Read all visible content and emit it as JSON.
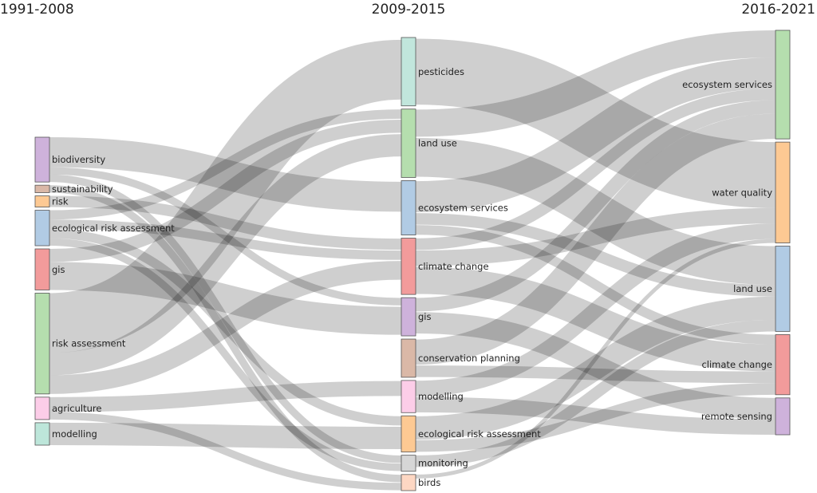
{
  "chart_data": {
    "type": "sankey",
    "columns": [
      {
        "title": "1991-2008",
        "nodes": [
          {
            "id": "c0_biodiversity",
            "label": "biodiversity",
            "color": "#c6a5d5"
          },
          {
            "id": "c0_sustainability",
            "label": "sustainability",
            "color": "#d3ab98"
          },
          {
            "id": "c0_risk",
            "label": "risk",
            "color": "#fdc080"
          },
          {
            "id": "c0_era",
            "label": "ecological risk assessment",
            "color": "#a3c2df"
          },
          {
            "id": "c0_gis",
            "label": "gis",
            "color": "#f08a8a"
          },
          {
            "id": "c0_ra",
            "label": "risk assessment",
            "color": "#a8d8a0"
          },
          {
            "id": "c0_agriculture",
            "label": "agriculture",
            "color": "#fcc4e4"
          },
          {
            "id": "c0_modelling",
            "label": "modelling",
            "color": "#b2e2d4"
          }
        ]
      },
      {
        "title": "2009-2015",
        "nodes": [
          {
            "id": "c1_pesticides",
            "label": "pesticides",
            "color": "#b6e2d6"
          },
          {
            "id": "c1_landuse",
            "label": "land use",
            "color": "#a8d8a0"
          },
          {
            "id": "c1_es",
            "label": "ecosystem services",
            "color": "#a3c2df"
          },
          {
            "id": "c1_cc",
            "label": "climate change",
            "color": "#f08a8a"
          },
          {
            "id": "c1_gis",
            "label": "gis",
            "color": "#c6a5d5"
          },
          {
            "id": "c1_cp",
            "label": "conservation planning",
            "color": "#d3ab98"
          },
          {
            "id": "c1_modelling",
            "label": "modelling",
            "color": "#fcc4e4"
          },
          {
            "id": "c1_era",
            "label": "ecological risk assessment",
            "color": "#fdc080"
          },
          {
            "id": "c1_monitoring",
            "label": "monitoring",
            "color": "#cfcfcf"
          },
          {
            "id": "c1_birds",
            "label": "birds",
            "color": "#fdd0b8"
          }
        ]
      },
      {
        "title": "2016-2021",
        "nodes": [
          {
            "id": "c2_es",
            "label": "ecosystem services",
            "color": "#a8d8a0"
          },
          {
            "id": "c2_wq",
            "label": "water quality",
            "color": "#fdc080"
          },
          {
            "id": "c2_landuse",
            "label": "land use",
            "color": "#a3c2df"
          },
          {
            "id": "c2_cc",
            "label": "climate change",
            "color": "#f08a8a"
          },
          {
            "id": "c2_rs",
            "label": "remote sensing",
            "color": "#c6a5d5"
          }
        ]
      }
    ],
    "links": [
      {
        "source": "c0_biodiversity",
        "target": "c1_es",
        "value": 16
      },
      {
        "source": "c0_biodiversity",
        "target": "c1_gis",
        "value": 4
      },
      {
        "source": "c0_biodiversity",
        "target": "c1_monitoring",
        "value": 4
      },
      {
        "source": "c0_sustainability",
        "target": "c1_birds",
        "value": 4
      },
      {
        "source": "c0_risk",
        "target": "c1_cc",
        "value": 6
      },
      {
        "source": "c0_era",
        "target": "c1_landuse",
        "value": 5
      },
      {
        "source": "c0_era",
        "target": "c1_cc",
        "value": 5
      },
      {
        "source": "c0_era",
        "target": "c1_era",
        "value": 5
      },
      {
        "source": "c0_era",
        "target": "c1_monitoring",
        "value": 4
      },
      {
        "source": "c0_gis",
        "target": "c1_landuse",
        "value": 7
      },
      {
        "source": "c0_gis",
        "target": "c1_gis",
        "value": 15
      },
      {
        "source": "c0_ra",
        "target": "c1_pesticides",
        "value": 32
      },
      {
        "source": "c0_ra",
        "target": "c1_landuse",
        "value": 12
      },
      {
        "source": "c0_ra",
        "target": "c1_cc",
        "value": 10
      },
      {
        "source": "c0_agriculture",
        "target": "c1_modelling",
        "value": 8
      },
      {
        "source": "c0_agriculture",
        "target": "c1_birds",
        "value": 4
      },
      {
        "source": "c0_modelling",
        "target": "c1_era",
        "value": 12
      },
      {
        "source": "c1_pesticides",
        "target": "c2_wq",
        "value": 34
      },
      {
        "source": "c1_landuse",
        "target": "c2_es",
        "value": 14
      },
      {
        "source": "c1_landuse",
        "target": "c2_landuse",
        "value": 20
      },
      {
        "source": "c1_es",
        "target": "c2_es",
        "value": 16
      },
      {
        "source": "c1_es",
        "target": "c2_landuse",
        "value": 6
      },
      {
        "source": "c1_es",
        "target": "c2_cc",
        "value": 5
      },
      {
        "source": "c1_cc",
        "target": "c2_es",
        "value": 6
      },
      {
        "source": "c1_cc",
        "target": "c2_wq",
        "value": 8
      },
      {
        "source": "c1_cc",
        "target": "c2_cc",
        "value": 14
      },
      {
        "source": "c1_gis",
        "target": "c2_es",
        "value": 7
      },
      {
        "source": "c1_gis",
        "target": "c2_rs",
        "value": 11
      },
      {
        "source": "c1_cp",
        "target": "c2_es",
        "value": 13
      },
      {
        "source": "c1_cp",
        "target": "c2_cc",
        "value": 6
      },
      {
        "source": "c1_modelling",
        "target": "c2_wq",
        "value": 8
      },
      {
        "source": "c1_modelling",
        "target": "c2_rs",
        "value": 8
      },
      {
        "source": "c1_era",
        "target": "c2_landuse",
        "value": 12
      },
      {
        "source": "c1_era",
        "target": "c2_cc",
        "value": 6
      },
      {
        "source": "c1_monitoring",
        "target": "c2_landuse",
        "value": 6
      },
      {
        "source": "c1_birds",
        "target": "c2_wq",
        "value": 2
      }
    ]
  }
}
